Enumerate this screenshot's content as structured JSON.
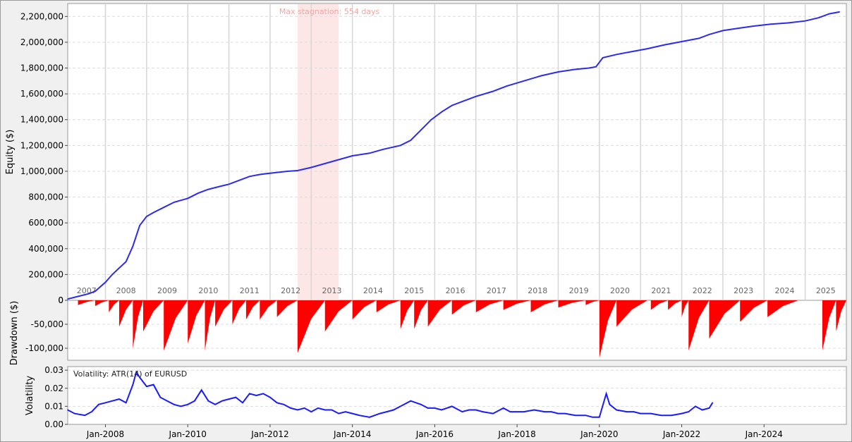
{
  "chart_data": [
    {
      "type": "line",
      "panel": "equity",
      "ylabel": "Equity ($)",
      "ylim": [
        0,
        2300000
      ],
      "yticks": [
        0,
        200000,
        400000,
        600000,
        800000,
        1000000,
        1200000,
        1400000,
        1600000,
        1800000,
        2000000,
        2200000
      ],
      "ytick_labels": [
        "0",
        "200,000",
        "400,000",
        "600,000",
        "800,000",
        "1,000,000",
        "1,200,000",
        "1,400,000",
        "1,600,000",
        "1,800,000",
        "2,000,000",
        "2,200,000"
      ],
      "xlim": [
        "2007-02",
        "2026-01"
      ],
      "year_labels": [
        "2007",
        "2008",
        "2009",
        "2010",
        "2011",
        "2012",
        "2013",
        "2014",
        "2015",
        "2016",
        "2017",
        "2018",
        "2019",
        "2020",
        "2021",
        "2022",
        "2023",
        "2024",
        "2025"
      ],
      "annotation": "Max stagnation: 554 days",
      "stagnation_period": [
        "2012-09",
        "2013-09"
      ],
      "grid": true,
      "line_color": "#2b2bf0",
      "series": [
        {
          "x": [
            "2007-02",
            "2007-05",
            "2007-08",
            "2007-10",
            "2008-01",
            "2008-03",
            "2008-05",
            "2008-07",
            "2008-09",
            "2008-11",
            "2009-01",
            "2009-03",
            "2009-06",
            "2009-09",
            "2010-01",
            "2010-04",
            "2010-07",
            "2010-10",
            "2011-01",
            "2011-04",
            "2011-07",
            "2011-10",
            "2012-01",
            "2012-06",
            "2012-09",
            "2013-01",
            "2013-05",
            "2013-09",
            "2014-01",
            "2014-06",
            "2014-10",
            "2015-03",
            "2015-06",
            "2015-09",
            "2015-12",
            "2016-03",
            "2016-06",
            "2016-09",
            "2017-01",
            "2017-06",
            "2017-10",
            "2018-03",
            "2018-08",
            "2019-01",
            "2019-06",
            "2019-10",
            "2019-12",
            "2020-02",
            "2020-06",
            "2020-10",
            "2021-03",
            "2021-08",
            "2022-01",
            "2022-06",
            "2022-09",
            "2023-01",
            "2023-06",
            "2023-10",
            "2024-03",
            "2024-08",
            "2025-01",
            "2025-05",
            "2025-08",
            "2025-11"
          ],
          "y": [
            10000,
            30000,
            50000,
            70000,
            140000,
            200000,
            250000,
            300000,
            420000,
            580000,
            650000,
            680000,
            720000,
            760000,
            790000,
            830000,
            860000,
            880000,
            900000,
            930000,
            960000,
            975000,
            985000,
            1000000,
            1005000,
            1030000,
            1060000,
            1090000,
            1120000,
            1140000,
            1170000,
            1200000,
            1240000,
            1320000,
            1400000,
            1460000,
            1510000,
            1540000,
            1580000,
            1620000,
            1660000,
            1700000,
            1740000,
            1770000,
            1790000,
            1800000,
            1810000,
            1880000,
            1905000,
            1925000,
            1950000,
            1980000,
            2005000,
            2030000,
            2060000,
            2090000,
            2110000,
            2125000,
            2140000,
            2150000,
            2165000,
            2190000,
            2220000,
            2235000
          ]
        }
      ]
    },
    {
      "type": "bar",
      "panel": "drawdown",
      "ylabel": "Drawdown ($)",
      "ylim": [
        -125000,
        0
      ],
      "yticks": [
        0,
        -50000,
        -100000
      ],
      "ytick_labels": [
        "0",
        "-50,000",
        "-100,000"
      ],
      "bar_color": "#ff0000",
      "series": [
        {
          "x": [
            "2007-05",
            "2007-10",
            "2008-02",
            "2008-05",
            "2008-09",
            "2008-12",
            "2009-06",
            "2010-01",
            "2010-06",
            "2010-09",
            "2011-02",
            "2011-06",
            "2011-10",
            "2012-03",
            "2012-09",
            "2013-05",
            "2014-01",
            "2014-08",
            "2015-03",
            "2015-07",
            "2015-11",
            "2016-06",
            "2017-01",
            "2017-09",
            "2018-05",
            "2019-01",
            "2019-09",
            "2020-01",
            "2020-06",
            "2021-04",
            "2021-09",
            "2022-01",
            "2022-03",
            "2022-09",
            "2023-06",
            "2024-02",
            "2025-06",
            "2025-10"
          ],
          "y": [
            -10000,
            -12000,
            -25000,
            -55000,
            -100000,
            -65000,
            -105000,
            -90000,
            -105000,
            -55000,
            -50000,
            -40000,
            -40000,
            -35000,
            -110000,
            -65000,
            -40000,
            -25000,
            -60000,
            -60000,
            -55000,
            -30000,
            -25000,
            -20000,
            -25000,
            -15000,
            -10000,
            -120000,
            -55000,
            -20000,
            -20000,
            -35000,
            -105000,
            -80000,
            -45000,
            -35000,
            -105000,
            -65000
          ]
        }
      ]
    },
    {
      "type": "line",
      "panel": "volatility",
      "ylabel": "Volatility",
      "legend_text": "Volatility: ATR(14) of EURUSD",
      "ylim": [
        0,
        0.032
      ],
      "yticks": [
        0,
        0.01,
        0.02,
        0.03
      ],
      "ytick_labels": [
        "0.00",
        "0.01",
        "0.02",
        "0.03"
      ],
      "x_tick_labels": [
        "Jan-2008",
        "Jan-2010",
        "Jan-2012",
        "Jan-2014",
        "Jan-2016",
        "Jan-2018",
        "Jan-2020",
        "Jan-2022",
        "Jan-2024"
      ],
      "line_color": "#1a1aff",
      "series": [
        {
          "x": [
            "2007-02",
            "2007-04",
            "2007-07",
            "2007-09",
            "2007-11",
            "2008-01",
            "2008-03",
            "2008-05",
            "2008-07",
            "2008-09",
            "2008-10",
            "2008-11",
            "2009-01",
            "2009-03",
            "2009-05",
            "2009-07",
            "2009-09",
            "2009-11",
            "2010-01",
            "2010-03",
            "2010-05",
            "2010-07",
            "2010-09",
            "2010-11",
            "2011-01",
            "2011-03",
            "2011-05",
            "2011-07",
            "2011-09",
            "2011-11",
            "2012-01",
            "2012-03",
            "2012-05",
            "2012-07",
            "2012-09",
            "2012-11",
            "2013-01",
            "2013-03",
            "2013-05",
            "2013-07",
            "2013-09",
            "2013-11",
            "2014-01",
            "2014-03",
            "2014-06",
            "2014-09",
            "2014-11",
            "2015-01",
            "2015-03",
            "2015-06",
            "2015-09",
            "2015-11",
            "2016-01",
            "2016-03",
            "2016-06",
            "2016-09",
            "2016-11",
            "2017-01",
            "2017-03",
            "2017-06",
            "2017-09",
            "2017-11",
            "2018-01",
            "2018-03",
            "2018-06",
            "2018-09",
            "2018-11",
            "2019-01",
            "2019-03",
            "2019-06",
            "2019-09",
            "2019-11",
            "2020-01",
            "2020-03",
            "2020-04",
            "2020-06",
            "2020-09",
            "2020-11",
            "2021-01",
            "2021-04",
            "2021-07",
            "2021-10",
            "2022-01",
            "2022-03",
            "2022-05",
            "2022-07",
            "2022-09",
            "2022-10"
          ],
          "y": [
            0.008,
            0.006,
            0.005,
            0.007,
            0.011,
            0.012,
            0.013,
            0.014,
            0.012,
            0.022,
            0.029,
            0.026,
            0.021,
            0.022,
            0.015,
            0.013,
            0.011,
            0.01,
            0.011,
            0.013,
            0.019,
            0.013,
            0.011,
            0.013,
            0.014,
            0.015,
            0.012,
            0.017,
            0.016,
            0.017,
            0.015,
            0.012,
            0.011,
            0.009,
            0.008,
            0.009,
            0.007,
            0.009,
            0.008,
            0.008,
            0.006,
            0.007,
            0.006,
            0.005,
            0.004,
            0.006,
            0.007,
            0.008,
            0.01,
            0.013,
            0.011,
            0.009,
            0.009,
            0.008,
            0.01,
            0.007,
            0.008,
            0.008,
            0.007,
            0.006,
            0.009,
            0.007,
            0.007,
            0.007,
            0.008,
            0.007,
            0.007,
            0.006,
            0.006,
            0.005,
            0.005,
            0.004,
            0.004,
            0.017,
            0.011,
            0.008,
            0.007,
            0.007,
            0.006,
            0.006,
            0.005,
            0.005,
            0.006,
            0.007,
            0.01,
            0.008,
            0.009,
            0.012
          ]
        }
      ]
    }
  ]
}
